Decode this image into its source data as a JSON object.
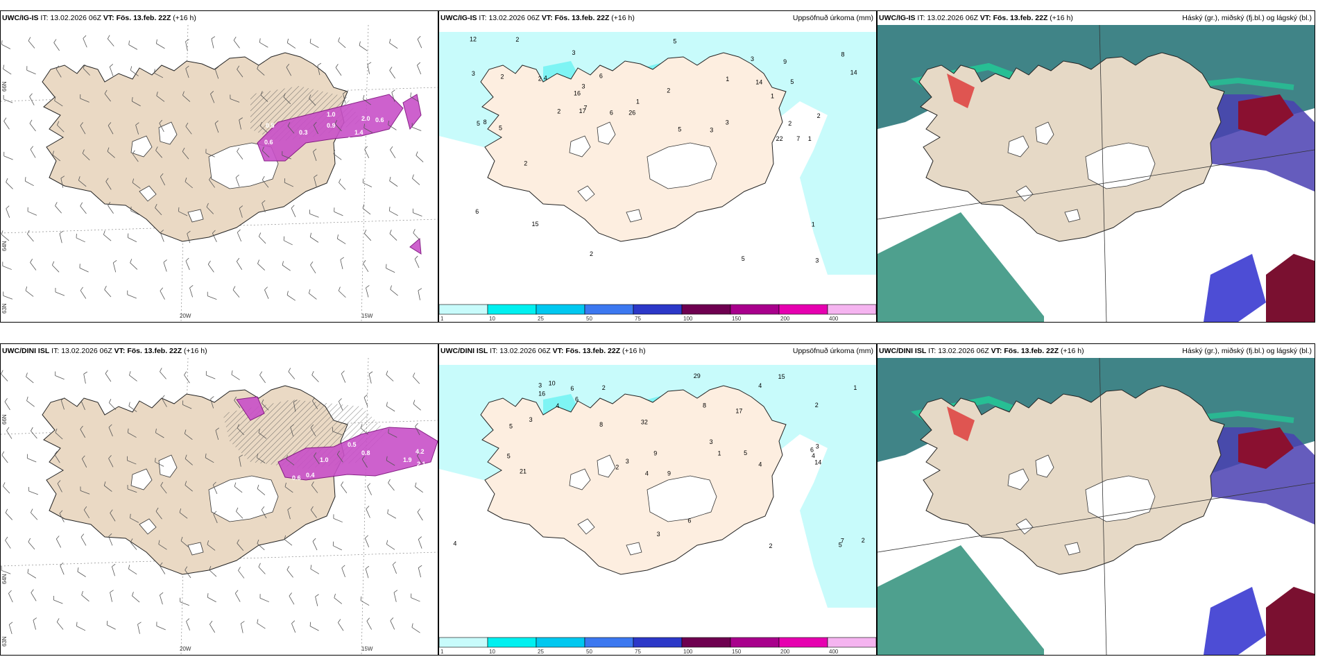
{
  "rows": [
    {
      "model": "UWC/IG-IS",
      "it_prefix": "IT:",
      "it_value": "13.02.2026 06Z",
      "vt_prefix": "VT:",
      "vt_value": "Fös. 13.feb. 22Z",
      "lead": "(+16 h)",
      "precip_title": "Uppsöfnuð úrkoma (mm)",
      "cloud_title": "Háský (gr.), miðský (fj.bl.) og lágský (bl.)",
      "lon_labels": [
        "20W",
        "15W"
      ],
      "lat_labels": [
        "66N",
        "64N",
        "63N"
      ],
      "precip_values": [
        "1",
        "2",
        "2",
        "1",
        "1",
        "3",
        "26",
        "16",
        "17",
        "14",
        "5",
        "5",
        "12",
        "22",
        "3",
        "3",
        "2",
        "14",
        "8",
        "6",
        "7",
        "4",
        "3",
        "2",
        "2",
        "1",
        "5",
        "8",
        "9",
        "5",
        "7",
        "6",
        "5",
        "2",
        "3",
        "3",
        "2",
        "2",
        "15",
        "2",
        "6",
        "3",
        "1",
        "5"
      ],
      "wind_values": [
        "1.0",
        "0.9",
        "0.3",
        "0.6",
        "0.5",
        "1.4",
        "2.0",
        "0.4",
        "0.6"
      ]
    },
    {
      "model": "UWC/DINI ISL",
      "it_prefix": "IT:",
      "it_value": "13.02.2026 06Z",
      "vt_prefix": "VT:",
      "vt_value": "Fös. 13.feb. 22Z",
      "lead": "(+16 h)",
      "precip_title": "Uppsöfnuð úrkoma (mm)",
      "cloud_title": "Háský (gr.), miðský (fj.bl.) og lágský (bl.)",
      "lon_labels": [
        "20W",
        "15W"
      ],
      "lat_labels": [
        "66N",
        "64N",
        "63N"
      ],
      "precip_values": [
        "1",
        "3",
        "2",
        "3",
        "14",
        "16",
        "6",
        "15",
        "9",
        "8",
        "4",
        "21",
        "17",
        "29",
        "32",
        "6",
        "5",
        "4",
        "9",
        "10",
        "8",
        "4",
        "3",
        "3",
        "2",
        "2",
        "3",
        "6",
        "5",
        "4",
        "1",
        "4",
        "5",
        "2",
        "6",
        "5",
        "4",
        "7",
        "3",
        "2"
      ],
      "wind_values": [
        "0.5",
        "0.6",
        "0.4",
        "1.0",
        "0.8",
        "1.9",
        "2.1",
        "4.2",
        "2.9"
      ]
    }
  ],
  "colorbar": {
    "ticks": [
      "1",
      "10",
      "25",
      "50",
      "75",
      "100",
      "150",
      "200",
      "400"
    ],
    "colors": [
      "#c8fbfb",
      "#00f0f0",
      "#00c8f0",
      "#3c78f0",
      "#2c38c8",
      "#6e0050",
      "#a8008c",
      "#e600b0",
      "#f5b4f0"
    ]
  }
}
